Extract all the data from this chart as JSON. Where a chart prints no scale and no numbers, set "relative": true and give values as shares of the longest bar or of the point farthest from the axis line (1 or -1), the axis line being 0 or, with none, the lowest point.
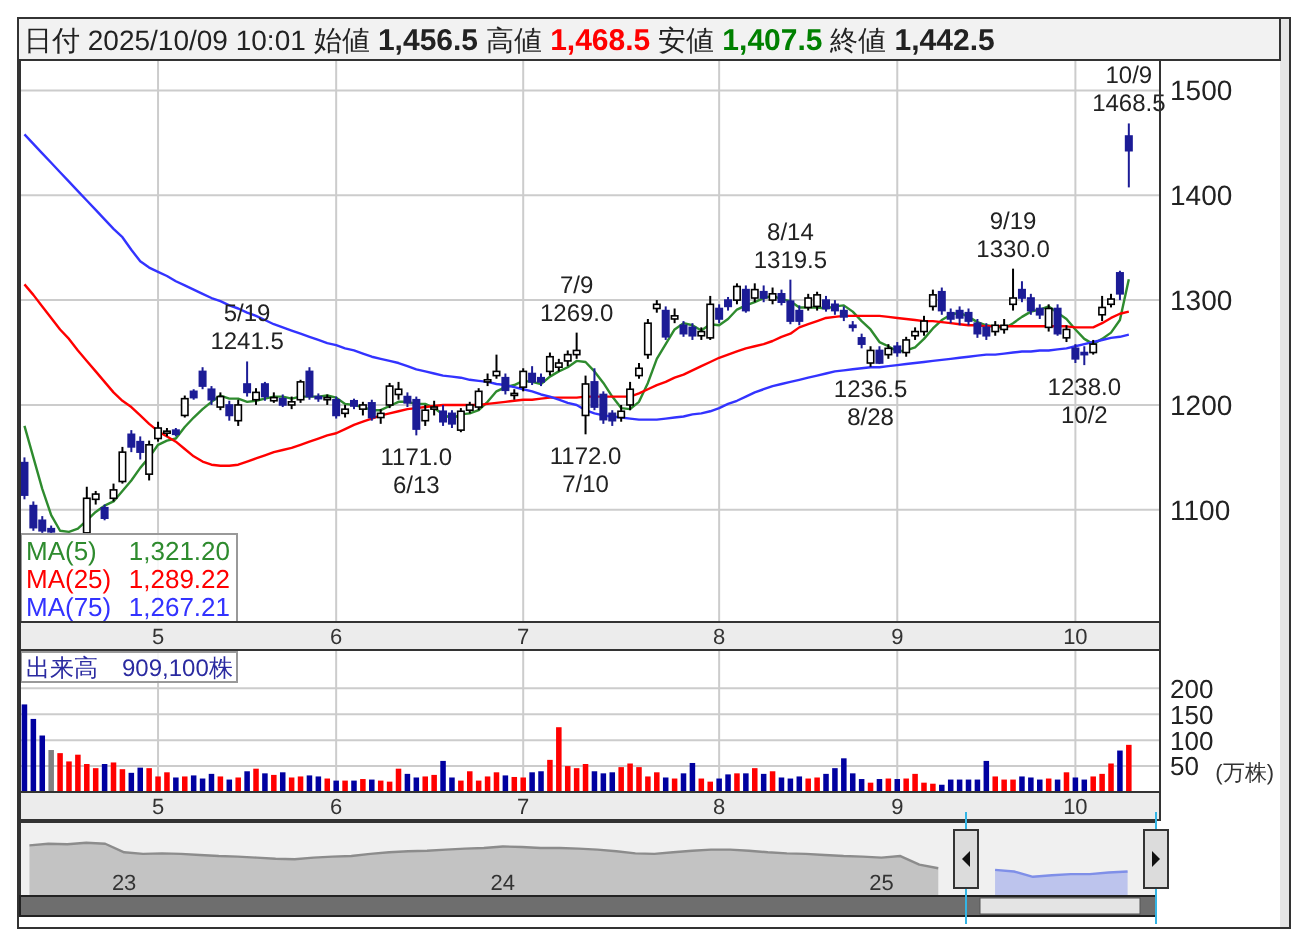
{
  "chart_data": [
    {
      "type": "candlestick",
      "title": "日付 2025/10/09 10:01 始値 1,456.5 高値 1,468.5 安値 1,407.5 終値 1,442.5",
      "categories": [
        null,
        null,
        null,
        null,
        null,
        null,
        null,
        null,
        null,
        null,
        null,
        null,
        null,
        null,
        null,
        "5",
        null,
        null,
        null,
        null,
        null,
        null,
        null,
        null,
        null,
        null,
        null,
        null,
        null,
        null,
        null,
        null,
        null,
        null,
        null,
        "6",
        null,
        null,
        null,
        null,
        null,
        null,
        null,
        null,
        null,
        null,
        null,
        null,
        null,
        null,
        null,
        null,
        null,
        null,
        null,
        null,
        "7",
        null,
        null,
        null,
        null,
        null,
        null,
        null,
        null,
        null,
        null,
        null,
        null,
        null,
        null,
        null,
        null,
        null,
        null,
        null,
        null,
        null,
        "8",
        null,
        null,
        null,
        null,
        null,
        null,
        null,
        null,
        null,
        null,
        null,
        null,
        null,
        null,
        null,
        null,
        null,
        null,
        null,
        "9",
        null,
        null,
        null,
        null,
        null,
        null,
        null,
        null,
        null,
        null,
        null,
        null,
        null,
        null,
        null,
        null,
        null,
        null,
        null,
        "10",
        null,
        null,
        null,
        null,
        null,
        null,
        null,
        null,
        null
      ],
      "ohlc": [
        [
          1145,
          1150,
          1110,
          1114
        ],
        [
          1104,
          1108,
          1080,
          1083
        ],
        [
          1090,
          1094,
          1078,
          1080
        ],
        [
          1082,
          1085,
          1078,
          1079
        ],
        null,
        null,
        null,
        [
          1078,
          1122,
          1078,
          1111
        ],
        [
          1110,
          1118,
          1105,
          1115
        ],
        [
          1102,
          1105,
          1090,
          1092
        ],
        [
          1111,
          1125,
          1108,
          1119
        ],
        [
          1127,
          1160,
          1125,
          1155
        ],
        [
          1172,
          1176,
          1155,
          1160
        ],
        [
          1165,
          1170,
          1148,
          1155
        ],
        [
          1134,
          1166,
          1128,
          1162
        ],
        [
          1168,
          1184,
          1165,
          1178
        ],
        [
          1174,
          1178,
          1170,
          1175
        ],
        [
          1176,
          1178,
          1170,
          1172
        ],
        [
          1190,
          1209,
          1188,
          1206
        ],
        [
          1213,
          1215,
          1205,
          1207
        ],
        [
          1232,
          1236,
          1215,
          1218
        ],
        [
          1215,
          1218,
          1200,
          1205
        ],
        [
          1198,
          1212,
          1195,
          1208
        ],
        [
          1200,
          1204,
          1185,
          1190
        ],
        [
          1185,
          1205,
          1180,
          1200
        ],
        [
          1220,
          1241.5,
          1208,
          1212
        ],
        [
          1205,
          1216,
          1200,
          1212
        ],
        [
          1220,
          1222,
          1204,
          1208
        ],
        [
          1204,
          1212,
          1202,
          1207
        ],
        [
          1206,
          1210,
          1198,
          1200
        ],
        [
          1200,
          1208,
          1196,
          1203
        ],
        [
          1205,
          1224,
          1202,
          1222
        ],
        [
          1232,
          1236,
          1205,
          1208
        ],
        [
          1208,
          1211,
          1203,
          1206
        ],
        [
          1205,
          1210,
          1200,
          1207
        ],
        [
          1205,
          1208,
          1187,
          1190
        ],
        [
          1192,
          1200,
          1188,
          1196
        ],
        [
          1204,
          1206,
          1196,
          1199
        ],
        [
          1196,
          1203,
          1190,
          1200
        ],
        [
          1202,
          1205,
          1185,
          1188
        ],
        [
          1188,
          1196,
          1182,
          1192
        ],
        [
          1200,
          1221,
          1197,
          1218
        ],
        [
          1210,
          1222,
          1205,
          1215
        ],
        [
          1208,
          1212,
          1198,
          1202
        ],
        [
          1205,
          1208,
          1171,
          1177
        ],
        [
          1185,
          1200,
          1180,
          1195
        ],
        [
          1196,
          1204,
          1190,
          1198
        ],
        [
          1194,
          1200,
          1180,
          1184
        ],
        [
          1192,
          1195,
          1178,
          1182
        ],
        [
          1176,
          1197,
          1174,
          1194
        ],
        [
          1195,
          1203,
          1192,
          1200
        ],
        [
          1198,
          1216,
          1195,
          1213
        ],
        [
          1222,
          1230,
          1218,
          1224
        ],
        [
          1228,
          1248,
          1225,
          1232
        ],
        [
          1226,
          1230,
          1210,
          1214
        ],
        [
          1210,
          1215,
          1205,
          1211
        ],
        [
          1217,
          1235,
          1213,
          1232
        ],
        [
          1230,
          1237,
          1219,
          1222
        ],
        [
          1226,
          1230,
          1218,
          1222
        ],
        [
          1232,
          1250,
          1228,
          1246
        ],
        [
          1236,
          1244,
          1232,
          1240
        ],
        [
          1242,
          1252,
          1237,
          1248
        ],
        [
          1248,
          1269,
          1244,
          1252
        ],
        [
          1190,
          1228,
          1172,
          1220
        ],
        [
          1222,
          1235,
          1195,
          1198
        ],
        [
          1210,
          1213,
          1182,
          1186
        ],
        [
          1192,
          1195,
          1180,
          1185
        ],
        [
          1188,
          1200,
          1184,
          1194
        ],
        [
          1200,
          1222,
          1195,
          1215
        ],
        [
          1228,
          1240,
          1225,
          1235
        ],
        [
          1248,
          1282,
          1244,
          1278
        ],
        [
          1292,
          1300,
          1288,
          1296
        ],
        [
          1290,
          1294,
          1262,
          1265
        ],
        [
          1282,
          1292,
          1278,
          1285
        ],
        [
          1276,
          1280,
          1265,
          1268
        ],
        [
          1274,
          1278,
          1262,
          1266
        ],
        [
          1266,
          1274,
          1262,
          1270
        ],
        [
          1264,
          1304,
          1262,
          1296
        ],
        [
          1292,
          1296,
          1278,
          1282
        ],
        [
          1300,
          1303,
          1290,
          1294
        ],
        [
          1300,
          1316,
          1296,
          1313
        ],
        [
          1310,
          1314,
          1288,
          1290
        ],
        [
          1302,
          1316,
          1298,
          1310
        ],
        [
          1308,
          1314,
          1298,
          1302
        ],
        [
          1300,
          1312,
          1296,
          1306
        ],
        [
          1306,
          1310,
          1295,
          1298
        ],
        [
          1299,
          1319.5,
          1277,
          1280
        ],
        [
          1290,
          1295,
          1276,
          1280
        ],
        [
          1293,
          1306,
          1290,
          1302
        ],
        [
          1294,
          1308,
          1290,
          1305
        ],
        [
          1300,
          1304,
          1289,
          1292
        ],
        [
          1296,
          1300,
          1286,
          1290
        ],
        [
          1290,
          1294,
          1280,
          1284
        ],
        [
          1276,
          1280,
          1270,
          1274
        ],
        [
          1264,
          1268,
          1254,
          1258
        ],
        [
          1240,
          1256,
          1236.5,
          1252
        ],
        [
          1252,
          1256,
          1239,
          1240
        ],
        [
          1248,
          1258,
          1244,
          1254
        ],
        [
          1256,
          1260,
          1246,
          1250
        ],
        [
          1250,
          1265,
          1246,
          1262
        ],
        [
          1266,
          1274,
          1262,
          1270
        ],
        [
          1270,
          1285,
          1266,
          1280
        ],
        [
          1294,
          1310,
          1290,
          1305
        ],
        [
          1308,
          1312,
          1286,
          1290
        ],
        [
          1288,
          1292,
          1278,
          1282
        ],
        [
          1290,
          1294,
          1276,
          1283
        ],
        [
          1288,
          1292,
          1276,
          1280
        ],
        [
          1278,
          1282,
          1264,
          1268
        ],
        [
          1274,
          1278,
          1262,
          1266
        ],
        [
          1270,
          1280,
          1266,
          1276
        ],
        [
          1272,
          1282,
          1268,
          1276
        ],
        [
          1296,
          1330,
          1290,
          1302
        ],
        [
          1310,
          1318,
          1298,
          1302
        ],
        [
          1302,
          1306,
          1286,
          1290
        ],
        [
          1292,
          1296,
          1282,
          1286
        ],
        [
          1274,
          1296,
          1270,
          1292
        ],
        [
          1292,
          1296,
          1266,
          1268
        ],
        [
          1264,
          1276,
          1260,
          1272
        ],
        [
          1254,
          1258,
          1240,
          1244
        ],
        [
          1250,
          1256,
          1238,
          1248
        ],
        [
          1250,
          1262,
          1248,
          1258
        ],
        [
          1286,
          1304,
          1280,
          1293
        ],
        [
          1296,
          1306,
          1293,
          1301
        ],
        [
          1326,
          1328,
          1300,
          1306
        ],
        [
          1456.5,
          1468.5,
          1407.5,
          1442.5
        ],
        null,
        null,
        null
      ],
      "series": [
        {
          "type": "line",
          "name": "MA(5)",
          "color": "#2e8b2e",
          "values": [
            1180,
            1150,
            1120,
            1095,
            1080,
            1079,
            1082,
            1090,
            1098,
            1104,
            1108,
            1118,
            1128,
            1140,
            1150,
            1162,
            1166,
            1168,
            1179,
            1188,
            1196,
            1203,
            1209,
            1206,
            1206,
            1203,
            1204,
            1206,
            1208,
            1208,
            1206,
            1208,
            1208,
            1208,
            1209,
            1207,
            1201,
            1200,
            1198,
            1195,
            1195,
            1199,
            1203,
            1203,
            1201,
            1201,
            1197,
            1191,
            1187,
            1191,
            1192,
            1195,
            1203,
            1213,
            1217,
            1219,
            1223,
            1222,
            1220,
            1227,
            1232,
            1236,
            1242,
            1241,
            1232,
            1221,
            1208,
            1197,
            1196,
            1203,
            1221,
            1244,
            1258,
            1272,
            1278,
            1276,
            1271,
            1277,
            1276,
            1282,
            1291,
            1295,
            1298,
            1302,
            1304,
            1301,
            1299,
            1293,
            1293,
            1293,
            1292,
            1294,
            1295,
            1289,
            1280,
            1272,
            1260,
            1256,
            1251,
            1252,
            1255,
            1263,
            1273,
            1281,
            1286,
            1288,
            1284,
            1279,
            1276,
            1275,
            1273,
            1278,
            1284,
            1289,
            1291,
            1294,
            1288,
            1282,
            1272,
            1263,
            1258,
            1263,
            1269,
            1281,
            1320,
            null,
            null,
            null
          ]
        },
        {
          "type": "line",
          "name": "MA(25)",
          "color": "#ff0000",
          "values": [
            1315,
            1305,
            1294,
            1283,
            1272,
            1263,
            1252,
            1242,
            1232,
            1222,
            1212,
            1204,
            1198,
            1190,
            1182,
            1175,
            1170,
            1165,
            1158,
            1151,
            1146,
            1143,
            1142,
            1142,
            1143,
            1146,
            1149,
            1152,
            1155,
            1157,
            1159,
            1162,
            1165,
            1168,
            1171,
            1173,
            1177,
            1181,
            1184,
            1187,
            1190,
            1192,
            1194,
            1196,
            1197,
            1198,
            1199,
            1200,
            1200,
            1200,
            1200,
            1200,
            1201,
            1202,
            1203,
            1204,
            1205,
            1205,
            1206,
            1207,
            1207,
            1207,
            1207,
            1208,
            1208,
            1208,
            1208,
            1208,
            1208,
            1211,
            1215,
            1219,
            1222,
            1226,
            1229,
            1233,
            1237,
            1241,
            1245,
            1248,
            1251,
            1254,
            1256,
            1258,
            1261,
            1265,
            1268,
            1274,
            1277,
            1280,
            1283,
            1284,
            1285,
            1285,
            1285,
            1285,
            1285,
            1284,
            1283,
            1282,
            1281,
            1280,
            1280,
            1279,
            1278,
            1277,
            1276,
            1276,
            1275,
            1275,
            1275,
            1275,
            1275,
            1275,
            1275,
            1275,
            1275,
            1275,
            1274,
            1274,
            1274,
            1278,
            1283,
            1287,
            1289,
            null,
            null,
            null
          ]
        },
        {
          "type": "line",
          "name": "MA(75)",
          "color": "#3333ff",
          "values": [
            1458,
            1449,
            1440,
            1431,
            1422,
            1413,
            1404,
            1395,
            1386,
            1377,
            1368,
            1360,
            1348,
            1337,
            1331,
            1327,
            1323,
            1318,
            1314,
            1310,
            1306,
            1302,
            1299,
            1295,
            1292,
            1288,
            1285,
            1281,
            1277,
            1274,
            1271,
            1268,
            1265,
            1262,
            1259,
            1257,
            1254,
            1252,
            1249,
            1246,
            1244,
            1242,
            1240,
            1237,
            1234,
            1232,
            1230,
            1228,
            1227,
            1226,
            1224,
            1223,
            1222,
            1220,
            1219,
            1217,
            1215,
            1213,
            1210,
            1208,
            1205,
            1202,
            1200,
            1195,
            1192,
            1190,
            1189,
            1188,
            1187,
            1186,
            1186,
            1186,
            1187,
            1188,
            1189,
            1191,
            1192,
            1194,
            1197,
            1201,
            1204,
            1208,
            1212,
            1215,
            1218,
            1220,
            1222,
            1224,
            1226,
            1228,
            1230,
            1232,
            1233,
            1234,
            1235,
            1236,
            1236,
            1237,
            1238,
            1239,
            1240,
            1241,
            1242,
            1243,
            1244,
            1245,
            1246,
            1247,
            1248,
            1248,
            1249,
            1250,
            1251,
            1251,
            1252,
            1252,
            1253,
            1254,
            1256,
            1258,
            1260,
            1262,
            1264,
            1265,
            1267,
            null,
            null,
            null
          ]
        }
      ],
      "ylim": [
        993,
        1529
      ],
      "yticks": [
        1100,
        1200,
        1300,
        1400,
        1500
      ],
      "grid": true,
      "legend": "bottom left",
      "annotations": [
        {
          "text": "5/19\n1241.5",
          "y": 1241.5
        },
        {
          "text": "1171.0\n6/13",
          "y": 1171
        },
        {
          "text": "7/9\n1269.0",
          "y": 1269
        },
        {
          "text": "1172.0\n7/10",
          "y": 1172
        },
        {
          "text": "8/14\n1319.5",
          "y": 1319.5
        },
        {
          "text": "1236.5\n8/28",
          "y": 1236.5
        },
        {
          "text": "9/19\n1330.0",
          "y": 1330
        },
        {
          "text": "1238.0\n10/2",
          "y": 1238
        },
        {
          "text": "10/9\n1468.5",
          "y": 1468.5
        },
        "1,321.20",
        "1,289.22",
        "1,267.21"
      ]
    },
    {
      "type": "bar",
      "title": "出来高　909,100株",
      "ylabel": "(万株)",
      "categories": [
        null,
        null,
        null,
        null,
        null,
        null,
        null,
        null,
        null,
        null,
        null,
        null,
        null,
        null,
        null,
        "5",
        null,
        null,
        null,
        null,
        null,
        null,
        null,
        null,
        null,
        null,
        null,
        null,
        null,
        null,
        null,
        null,
        null,
        null,
        null,
        "6",
        null,
        null,
        null,
        null,
        null,
        null,
        null,
        null,
        null,
        null,
        null,
        null,
        null,
        null,
        null,
        null,
        null,
        null,
        null,
        null,
        "7",
        null,
        null,
        null,
        null,
        null,
        null,
        null,
        null,
        null,
        null,
        null,
        null,
        null,
        null,
        null,
        null,
        null,
        null,
        null,
        null,
        null,
        "8",
        null,
        null,
        null,
        null,
        null,
        null,
        null,
        null,
        null,
        null,
        null,
        null,
        null,
        null,
        null,
        null,
        null,
        null,
        null,
        "9",
        null,
        null,
        null,
        null,
        null,
        null,
        null,
        null,
        null,
        null,
        null,
        null,
        null,
        null,
        null,
        null,
        null,
        null,
        null,
        "10",
        null,
        null,
        null,
        null,
        null,
        null,
        null,
        null,
        null
      ],
      "values": [
        169,
        141,
        109,
        81,
        75,
        59,
        72,
        54,
        46,
        54,
        57,
        44,
        37,
        47,
        46,
        30,
        38,
        28,
        30,
        32,
        26,
        35,
        30,
        24,
        28,
        40,
        45,
        36,
        33,
        38,
        28,
        30,
        32,
        30,
        26,
        22,
        22,
        22,
        25,
        24,
        22,
        20,
        45,
        35,
        28,
        30,
        33,
        60,
        28,
        22,
        40,
        22,
        30,
        38,
        32,
        29,
        28,
        38,
        40,
        62,
        125,
        50,
        46,
        54,
        40,
        36,
        38,
        48,
        55,
        48,
        30,
        38,
        28,
        26,
        36,
        56,
        26,
        20,
        26,
        34,
        36,
        36,
        46,
        35,
        40,
        28,
        26,
        30,
        26,
        28,
        35,
        46,
        65,
        36,
        25,
        18,
        25,
        26,
        25,
        26,
        35,
        18,
        16,
        14,
        24,
        24,
        24,
        24,
        60,
        30,
        24,
        24,
        30,
        28,
        24,
        26,
        24,
        38,
        28,
        24,
        30,
        35,
        55,
        80,
        91,
        null,
        null,
        null
      ],
      "colors": [
        "#0000a0",
        "#0000a0",
        "#0000a0",
        "#808080",
        "#ff0000",
        "#ff0000",
        "#ff0000",
        "#ff0000",
        "#ff0000",
        "#0000a0",
        "#ff0000",
        "#ff0000",
        "#0000a0",
        "#0000a0",
        "#ff0000",
        "#ff0000",
        "#ff0000",
        "#0000a0",
        "#ff0000",
        "#0000a0",
        "#0000a0",
        "#0000a0",
        "#ff0000",
        "#0000a0",
        "#ff0000",
        "#0000a0",
        "#ff0000",
        "#0000a0",
        "#ff0000",
        "#0000a0",
        "#ff0000",
        "#ff0000",
        "#0000a0",
        "#0000a0",
        "#ff0000",
        "#0000a0",
        "#ff0000",
        "#0000a0",
        "#ff0000",
        "#0000a0",
        "#ff0000",
        "#ff0000",
        "#ff0000",
        "#0000a0",
        "#0000a0",
        "#ff0000",
        "#ff0000",
        "#0000a0",
        "#0000a0",
        "#ff0000",
        "#ff0000",
        "#ff0000",
        "#ff0000",
        "#ff0000",
        "#0000a0",
        "#ff0000",
        "#ff0000",
        "#0000a0",
        "#0000a0",
        "#ff0000",
        "#ff0000",
        "#ff0000",
        "#ff0000",
        "#ff0000",
        "#0000a0",
        "#0000a0",
        "#0000a0",
        "#ff0000",
        "#ff0000",
        "#ff0000",
        "#ff0000",
        "#ff0000",
        "#0000a0",
        "#ff0000",
        "#0000a0",
        "#0000a0",
        "#ff0000",
        "#ff0000",
        "#0000a0",
        "#0000a0",
        "#ff0000",
        "#0000a0",
        "#ff0000",
        "#0000a0",
        "#ff0000",
        "#0000a0",
        "#0000a0",
        "#0000a0",
        "#ff0000",
        "#ff0000",
        "#0000a0",
        "#0000a0",
        "#0000a0",
        "#0000a0",
        "#0000a0",
        "#ff0000",
        "#0000a0",
        "#ff0000",
        "#0000a0",
        "#ff0000",
        "#ff0000",
        "#ff0000",
        "#ff0000",
        "#0000a0",
        "#0000a0",
        "#0000a0",
        "#0000a0",
        "#0000a0",
        "#0000a0",
        "#ff0000",
        "#ff0000",
        "#ff0000",
        "#0000a0",
        "#0000a0",
        "#0000a0",
        "#ff0000",
        "#0000a0",
        "#ff0000",
        "#0000a0",
        "#0000a0",
        "#ff0000",
        "#ff0000",
        "#ff0000",
        "#0000a0",
        "#ff0000",
        null,
        null,
        null
      ],
      "ylim": [
        0,
        274
      ],
      "yticks": [
        50,
        100,
        150,
        200
      ],
      "grid": true
    },
    {
      "type": "area",
      "relative": true,
      "categories": [
        null,
        null,
        null,
        null,
        null,
        "23",
        null,
        null,
        null,
        null,
        null,
        null,
        null,
        null,
        null,
        null,
        null,
        null,
        null,
        null,
        null,
        null,
        null,
        null,
        null,
        "24",
        null,
        null,
        null,
        null,
        null,
        null,
        null,
        null,
        null,
        null,
        null,
        null,
        null,
        null,
        null,
        null,
        null,
        null,
        null,
        "25",
        null,
        null,
        null,
        null,
        null,
        null,
        null,
        null,
        null,
        null,
        null,
        null,
        null,
        null
      ],
      "series": [
        {
          "color": "#8c8c8c",
          "values": [
            0.95,
            0.98,
            0.97,
            1,
            0.98,
            0.82,
            0.79,
            0.8,
            0.79,
            0.77,
            0.75,
            0.74,
            0.72,
            0.7,
            0.69,
            0.72,
            0.74,
            0.75,
            0.79,
            0.82,
            0.84,
            0.85,
            0.87,
            0.89,
            0.9,
            0.93,
            0.92,
            0.9,
            0.9,
            0.89,
            0.87,
            0.84,
            0.8,
            0.79,
            0.82,
            0.85,
            0.87,
            0.87,
            0.85,
            0.82,
            0.8,
            0.79,
            0.77,
            0.75,
            0.74,
            0.72,
            0.75,
            0.59,
            0.52,
            null,
            null,
            null,
            null,
            null,
            null,
            null,
            null,
            null,
            null,
            null
          ]
        },
        {
          "color": "#7f8fe8",
          "values": [
            null,
            null,
            null,
            null,
            null,
            null,
            null,
            null,
            null,
            null,
            null,
            null,
            null,
            null,
            null,
            null,
            null,
            null,
            null,
            null,
            null,
            null,
            null,
            null,
            null,
            null,
            null,
            null,
            null,
            null,
            null,
            null,
            null,
            null,
            null,
            null,
            null,
            null,
            null,
            null,
            null,
            null,
            null,
            null,
            null,
            null,
            null,
            null,
            null,
            null,
            null,
            0.49,
            0.46,
            0.36,
            0.39,
            0.41,
            0.41,
            0.44,
            0.46,
            null
          ]
        }
      ]
    }
  ]
}
